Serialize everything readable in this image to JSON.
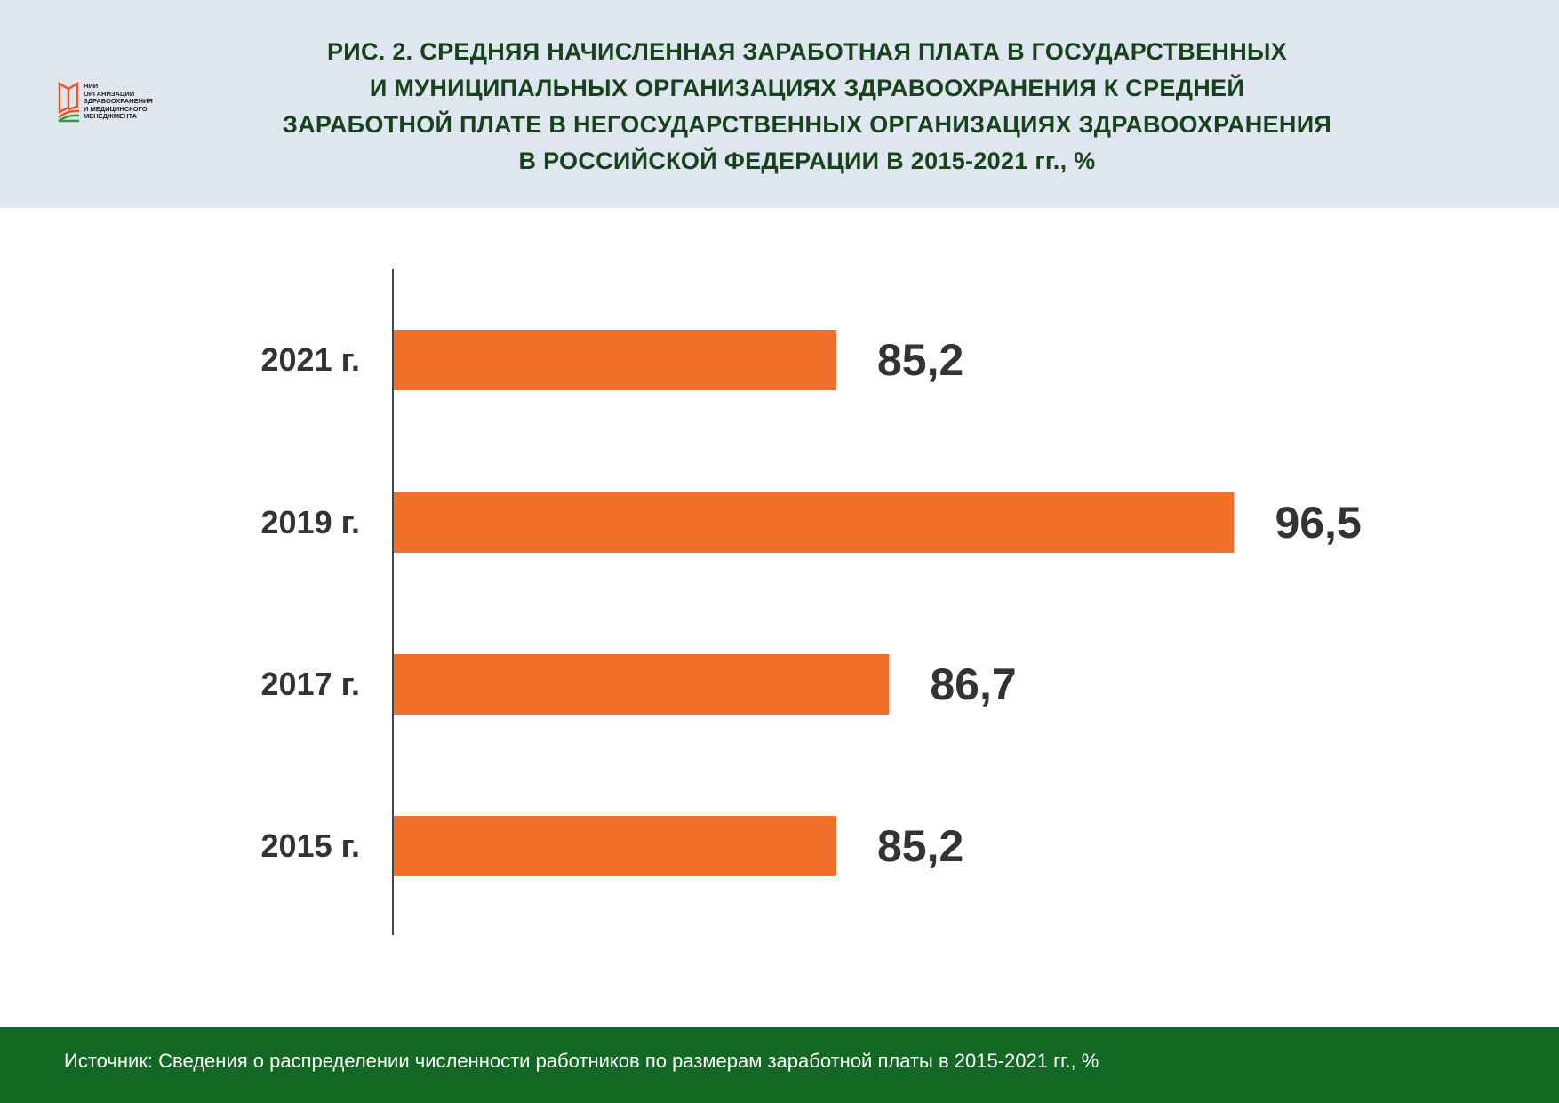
{
  "header": {
    "logo_text": [
      "НИИ",
      "ОРГАНИЗАЦИИ",
      "ЗДРАВООХРАНЕНИЯ",
      "И МЕДИЦИНСКОГО",
      "МЕНЕДЖМЕНТА"
    ],
    "title_lines": [
      "РИС. 2. СРЕДНЯЯ НАЧИСЛЕННАЯ ЗАРАБОТНАЯ ПЛАТА В ГОСУДАРСТВЕННЫХ",
      "И МУНИЦИПАЛЬНЫХ ОРГАНИЗАЦИЯХ ЗДРАВООХРАНЕНИЯ К СРЕДНЕЙ",
      "ЗАРАБОТНОЙ ПЛАТЕ В НЕГОСУДАРСТВЕННЫХ ОРГАНИЗАЦИЯХ ЗДРАВООХРАНЕНИЯ",
      "В РОССИЙСКОЙ ФЕДЕРАЦИИ В 2015-2021 гг., %"
    ]
  },
  "footer": {
    "source": "Источник: Сведения о распределении численности работников по размерам заработной платы в 2015-2021 гг., %"
  },
  "colors": {
    "bar": "#f07029",
    "header_bg": "#dfe6f0",
    "footer_bg": "#136824",
    "title": "#17431c"
  },
  "chart_data": {
    "type": "bar",
    "orientation": "horizontal",
    "title": "РИС. 2. СРЕДНЯЯ НАЧИСЛЕННАЯ ЗАРАБОТНАЯ ПЛАТА В ГОСУДАРСТВЕННЫХ И МУНИЦИПАЛЬНЫХ ОРГАНИЗАЦИЯХ ЗДРАВООХРАНЕНИЯ К СРЕДНЕЙ ЗАРАБОТНОЙ ПЛАТЕ В НЕГОСУДАРСТВЕННЫХ ОРГАНИЗАЦИЯХ ЗДРАВООХРАНЕНИЯ В РОССИЙСКОЙ ФЕДЕРАЦИИ В 2015-2021 гг., %",
    "categories": [
      "2021 г.",
      "2019 г.",
      "2017 г.",
      "2015 г."
    ],
    "values": [
      85.2,
      96.5,
      86.7,
      85.2
    ],
    "value_labels": [
      "85,2",
      "96,5",
      "86,7",
      "85,2"
    ],
    "xlim": [
      72.6,
      100
    ],
    "grid": false,
    "legend": "none"
  }
}
